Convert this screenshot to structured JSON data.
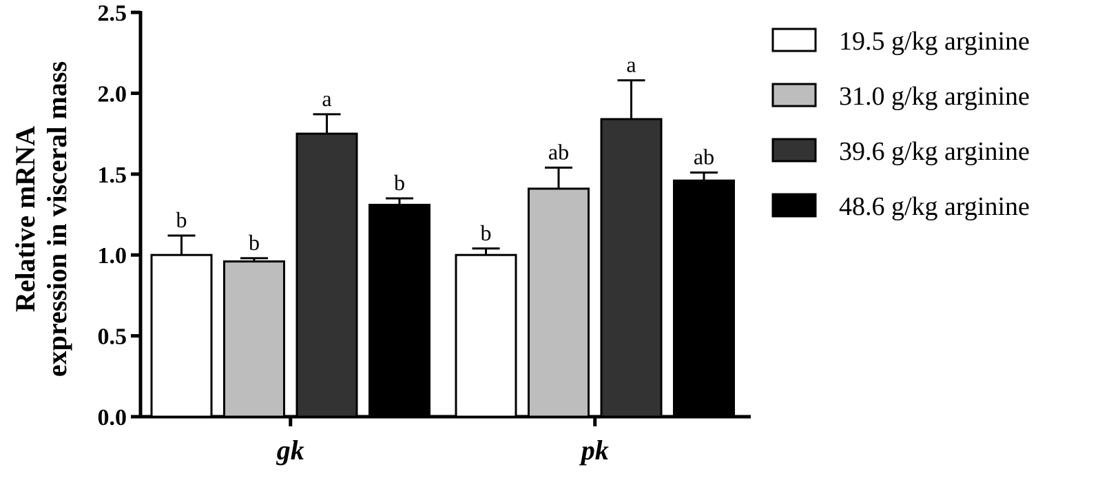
{
  "chart_data": {
    "type": "bar",
    "title": "",
    "xlabel": "",
    "ylabel": [
      "Relative mRNA",
      "expression in visceral mass"
    ],
    "ylim": [
      0,
      2.5
    ],
    "yticks": [
      "0.0",
      "0.5",
      "1.0",
      "1.5",
      "2.0",
      "2.5"
    ],
    "categories": [
      "gk",
      "pk"
    ],
    "grid": false,
    "legend_position": "right",
    "series": [
      {
        "name": "19.5 g/kg arginine",
        "color": "#ffffff",
        "values": [
          1.0,
          1.0
        ],
        "errors": [
          0.12,
          0.04
        ],
        "significance": [
          "b",
          "b"
        ]
      },
      {
        "name": "31.0 g/kg arginine",
        "color": "#bdbdbd",
        "values": [
          0.96,
          1.41
        ],
        "errors": [
          0.02,
          0.13
        ],
        "significance": [
          "b",
          "ab"
        ]
      },
      {
        "name": "39.6 g/kg arginine",
        "color": "#333333",
        "values": [
          1.75,
          1.84
        ],
        "errors": [
          0.12,
          0.24
        ],
        "significance": [
          "a",
          "a"
        ]
      },
      {
        "name": "48.6 g/kg arginine",
        "color": "#000000",
        "values": [
          1.31,
          1.46
        ],
        "errors": [
          0.04,
          0.05
        ],
        "significance": [
          "b",
          "ab"
        ]
      }
    ]
  }
}
